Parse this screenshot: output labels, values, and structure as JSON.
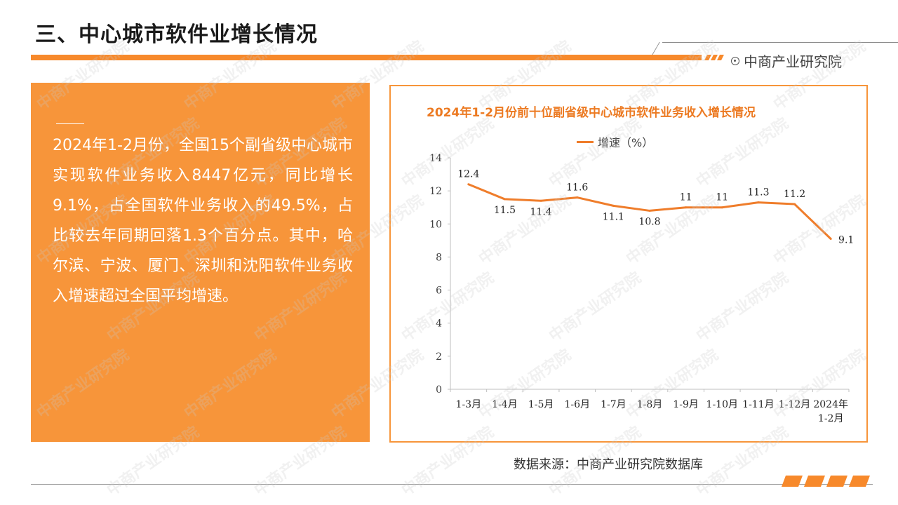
{
  "header": {
    "title": "三、中心城市软件业增长情况",
    "brand": "中商产业研究院"
  },
  "panel": {
    "text": "2024年1-2月份，全国15个副省级中心城市实现软件业务收入8447亿元，同比增长9.1%，占全国软件业务收入的49.5%，占比较去年同期回落1.3个百分点。其中，哈尔滨、宁波、厦门、深圳和沈阳软件业务收入增速超过全国平均增速。"
  },
  "source": "数据来源：中商产业研究院数据库",
  "watermark": "中商产业研究院",
  "colors": {
    "accent": "#f7953a",
    "line": "#ef7d2b",
    "title": "#ec7a22"
  },
  "chart_data": {
    "type": "line",
    "title": "2024年1-2月份前十位副省级中心城市软件业务收入增长情况",
    "categories": [
      "1-3月",
      "1-4月",
      "1-5月",
      "1-6月",
      "1-7月",
      "1-8月",
      "1-9月",
      "1-10月",
      "1-11月",
      "1-12月",
      "2024年 1-2月"
    ],
    "category_lines": [
      [
        "1-3月"
      ],
      [
        "1-4月"
      ],
      [
        "1-5月"
      ],
      [
        "1-6月"
      ],
      [
        "1-7月"
      ],
      [
        "1-8月"
      ],
      [
        "1-9月"
      ],
      [
        "1-10月"
      ],
      [
        "1-11月"
      ],
      [
        "1-12月"
      ],
      [
        "2024年",
        "1-2月"
      ]
    ],
    "series": [
      {
        "name": "增速（%）",
        "values": [
          12.4,
          11.5,
          11.4,
          11.6,
          11.1,
          10.8,
          11,
          11,
          11.3,
          11.2,
          9.1
        ]
      }
    ],
    "data_labels": [
      "12.4",
      "11.5",
      "11.4",
      "11.6",
      "11.1",
      "10.8",
      "11",
      "11",
      "11.3",
      "11.2",
      "9.1"
    ],
    "ylim": [
      0,
      14
    ],
    "yticks": [
      0,
      2,
      4,
      6,
      8,
      10,
      12,
      14
    ],
    "grid": false,
    "legend_position": "top"
  }
}
